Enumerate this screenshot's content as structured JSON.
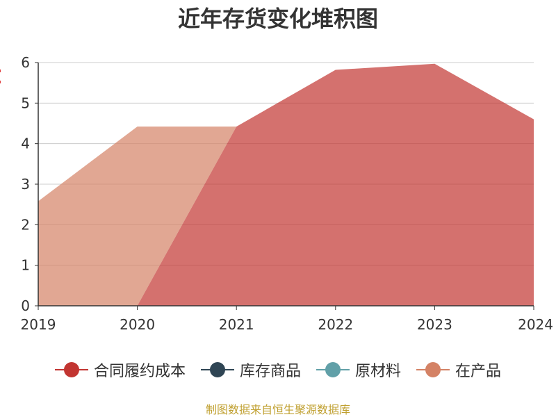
{
  "chart_data": {
    "type": "area",
    "stacked": true,
    "title": "近年存货变化堆积图",
    "source": "制图数据来自恒生聚源数据库",
    "categories": [
      "2019",
      "2020",
      "2021",
      "2022",
      "2023",
      "2024"
    ],
    "ylim": [
      0,
      6
    ],
    "yticks": [
      "0",
      "1",
      "2",
      "3",
      "4",
      "5",
      "6"
    ],
    "grid": true,
    "legend_position": "bottom",
    "series": [
      {
        "name": "合同履约成本",
        "color": "#c23531",
        "values": [
          0,
          0,
          4.42,
          5.82,
          5.97,
          4.6
        ]
      },
      {
        "name": "库存商品",
        "color": "#2f4554",
        "values": [
          0,
          0,
          0,
          0,
          0,
          0
        ]
      },
      {
        "name": "原材料",
        "color": "#61a0a8",
        "values": [
          0,
          0,
          0,
          0,
          0,
          0
        ]
      },
      {
        "name": "在产品",
        "color": "#d48265",
        "values": [
          2.58,
          4.42,
          0,
          0,
          0,
          0
        ]
      }
    ],
    "source_color": "#c0a030",
    "ylabel_color": "#e03c3c"
  }
}
